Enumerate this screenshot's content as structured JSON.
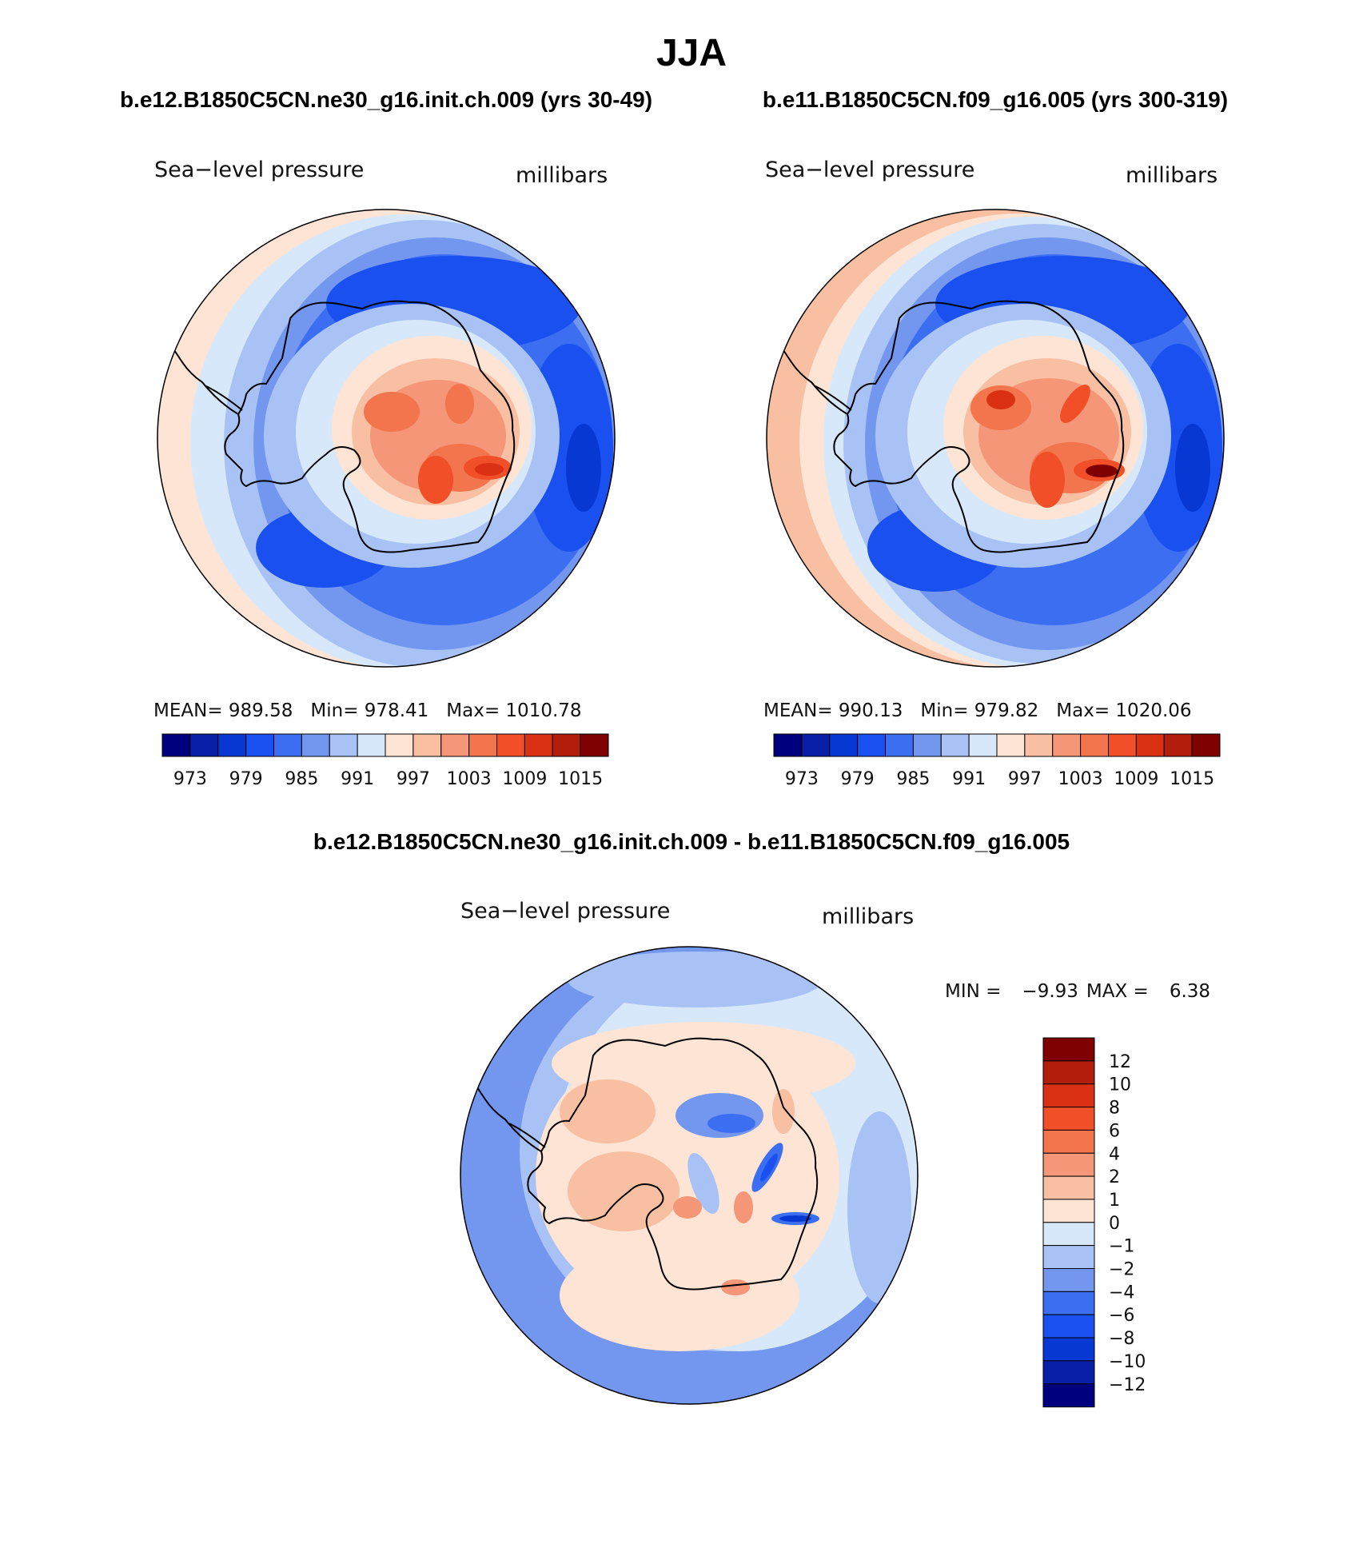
{
  "title": "JJA",
  "colors": {
    "abs_scale": [
      "#00007f",
      "#0a1fa8",
      "#0838d4",
      "#1a4ff0",
      "#3c6ef2",
      "#7396ef",
      "#a9c2f5",
      "#d8e8fb",
      "#fde4d4",
      "#f8bfa3",
      "#f49677",
      "#f2754d",
      "#f04f28",
      "#da3115",
      "#b11f0c",
      "#7f0000"
    ],
    "diff_scale": [
      "#00007f",
      "#0a1fa8",
      "#0838d4",
      "#1a4ff0",
      "#3c6ef2",
      "#7396ef",
      "#a9c2f5",
      "#d8e8fb",
      "#fde4d4",
      "#f8bfa3",
      "#f49677",
      "#f2754d",
      "#f04f28",
      "#da3115",
      "#b11f0c",
      "#7f0000"
    ]
  },
  "panels": [
    {
      "heading": "b.e12.B1850C5CN.ne30_g16.init.ch.009 (yrs 30-49)",
      "variable": "Sea−level pressure",
      "units": "millibars",
      "stats": {
        "mean_label": "MEAN=",
        "mean": "989.58",
        "min_label": "Min=",
        "min": "978.41",
        "max_label": "Max=",
        "max": "1010.78"
      },
      "colorbar_ticks": [
        "973",
        "979",
        "985",
        "991",
        "997",
        "1003",
        "1009",
        "1015"
      ]
    },
    {
      "heading": "b.e11.B1850C5CN.f09_g16.005 (yrs 300-319)",
      "variable": "Sea−level pressure",
      "units": "millibars",
      "stats": {
        "mean_label": "MEAN=",
        "mean": "990.13",
        "min_label": "Min=",
        "min": "979.82",
        "max_label": "Max=",
        "max": "1020.06"
      },
      "colorbar_ticks": [
        "973",
        "979",
        "985",
        "991",
        "997",
        "1003",
        "1009",
        "1015"
      ]
    }
  ],
  "difference": {
    "heading": "b.e12.B1850C5CN.ne30_g16.init.ch.009 - b.e11.B1850C5CN.f09_g16.005",
    "variable": "Sea−level pressure",
    "units": "millibars",
    "stats": {
      "min_label": "MIN =",
      "min": "−9.93",
      "max_label": "MAX =",
      "max": "6.38"
    },
    "colorbar_ticks": [
      "12",
      "10",
      "8",
      "6",
      "4",
      "2",
      "1",
      "0",
      "−1",
      "−2",
      "−4",
      "−6",
      "−8",
      "−10",
      "−12"
    ]
  }
}
